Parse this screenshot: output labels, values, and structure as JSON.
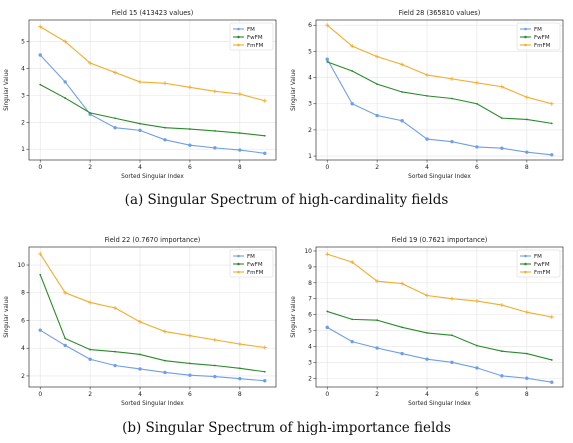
{
  "captions": {
    "a": "(a)  Singular Spectrum of high-cardinality fields",
    "b": "(b)  Singular Spectrum of high-importance fields"
  },
  "colors": {
    "FM": "#6f9ee8",
    "FwFM": "#2a8a2a",
    "FmFM": "#f4ac2b"
  },
  "chart_data": [
    {
      "type": "line",
      "title": "Field 15 (413423 values)",
      "xlabel": "Sorted Singular Index",
      "ylabel": "Singular Value",
      "x": [
        0,
        1,
        2,
        3,
        4,
        5,
        6,
        7,
        8,
        9
      ],
      "xticks": [
        0,
        2,
        4,
        6,
        8
      ],
      "yticks": [
        1,
        2,
        3,
        4,
        5
      ],
      "xlim": [
        -0.45,
        9.45
      ],
      "ylim": [
        0.6,
        5.8
      ],
      "grid": true,
      "legend": "top-right",
      "series": [
        {
          "name": "FM",
          "values": [
            4.5,
            3.5,
            2.3,
            1.8,
            1.7,
            1.35,
            1.15,
            1.05,
            0.97,
            0.85
          ]
        },
        {
          "name": "FwFM",
          "values": [
            3.4,
            2.9,
            2.35,
            2.15,
            1.95,
            1.8,
            1.75,
            1.68,
            1.6,
            1.5
          ]
        },
        {
          "name": "FmFM",
          "values": [
            5.55,
            5.0,
            4.2,
            3.85,
            3.5,
            3.45,
            3.3,
            3.15,
            3.05,
            2.8
          ]
        }
      ]
    },
    {
      "type": "line",
      "title": "Field 28 (365810 values)",
      "xlabel": "Sorted Singular Index",
      "ylabel": "Singular Value",
      "x": [
        0,
        1,
        2,
        3,
        4,
        5,
        6,
        7,
        8,
        9
      ],
      "xticks": [
        0,
        2,
        4,
        6,
        8
      ],
      "yticks": [
        1,
        2,
        3,
        4,
        5,
        6
      ],
      "xlim": [
        -0.45,
        9.45
      ],
      "ylim": [
        0.85,
        6.2
      ],
      "grid": true,
      "legend": "top-right",
      "series": [
        {
          "name": "FM",
          "values": [
            4.7,
            3.0,
            2.55,
            2.35,
            1.65,
            1.55,
            1.35,
            1.3,
            1.15,
            1.05
          ]
        },
        {
          "name": "FwFM",
          "values": [
            4.6,
            4.25,
            3.75,
            3.45,
            3.3,
            3.2,
            3.0,
            2.45,
            2.4,
            2.25
          ]
        },
        {
          "name": "FmFM",
          "values": [
            6.0,
            5.2,
            4.8,
            4.5,
            4.1,
            3.95,
            3.8,
            3.65,
            3.25,
            3.0
          ]
        }
      ]
    },
    {
      "type": "line",
      "title": "Field 22 (0.7670 importance)",
      "xlabel": "Sorted Singular Index",
      "ylabel": "Singular value",
      "x": [
        0,
        1,
        2,
        3,
        4,
        5,
        6,
        7,
        8,
        9
      ],
      "xticks": [
        0,
        2,
        4,
        6,
        8
      ],
      "yticks": [
        2,
        4,
        6,
        8,
        10
      ],
      "xlim": [
        -0.45,
        9.45
      ],
      "ylim": [
        1.2,
        11.3
      ],
      "grid": true,
      "legend": "top-right",
      "series": [
        {
          "name": "FM",
          "values": [
            5.3,
            4.2,
            3.2,
            2.75,
            2.5,
            2.25,
            2.05,
            1.95,
            1.8,
            1.65
          ]
        },
        {
          "name": "FwFM",
          "values": [
            9.3,
            4.7,
            3.9,
            3.75,
            3.55,
            3.1,
            2.9,
            2.75,
            2.55,
            2.3
          ]
        },
        {
          "name": "FmFM",
          "values": [
            10.8,
            8.0,
            7.3,
            6.9,
            5.9,
            5.2,
            4.9,
            4.6,
            4.3,
            4.05
          ]
        }
      ]
    },
    {
      "type": "line",
      "title": "Field 19 (0.7621 importance)",
      "xlabel": "Sorted Singular Index",
      "ylabel": "Singular value",
      "x": [
        0,
        1,
        2,
        3,
        4,
        5,
        6,
        7,
        8,
        9
      ],
      "xticks": [
        0,
        2,
        4,
        6,
        8
      ],
      "yticks": [
        2,
        3,
        4,
        5,
        6,
        7,
        8,
        9,
        10
      ],
      "xlim": [
        -0.45,
        9.45
      ],
      "ylim": [
        1.45,
        10.25
      ],
      "grid": true,
      "legend": "top-right",
      "series": [
        {
          "name": "FM",
          "values": [
            5.2,
            4.3,
            3.9,
            3.55,
            3.2,
            3.0,
            2.65,
            2.15,
            2.0,
            1.75
          ]
        },
        {
          "name": "FwFM",
          "values": [
            6.2,
            5.7,
            5.65,
            5.2,
            4.85,
            4.7,
            4.05,
            3.7,
            3.55,
            3.15
          ]
        },
        {
          "name": "FmFM",
          "values": [
            9.8,
            9.3,
            8.1,
            7.95,
            7.2,
            7.0,
            6.85,
            6.6,
            6.15,
            5.85
          ]
        }
      ]
    }
  ]
}
